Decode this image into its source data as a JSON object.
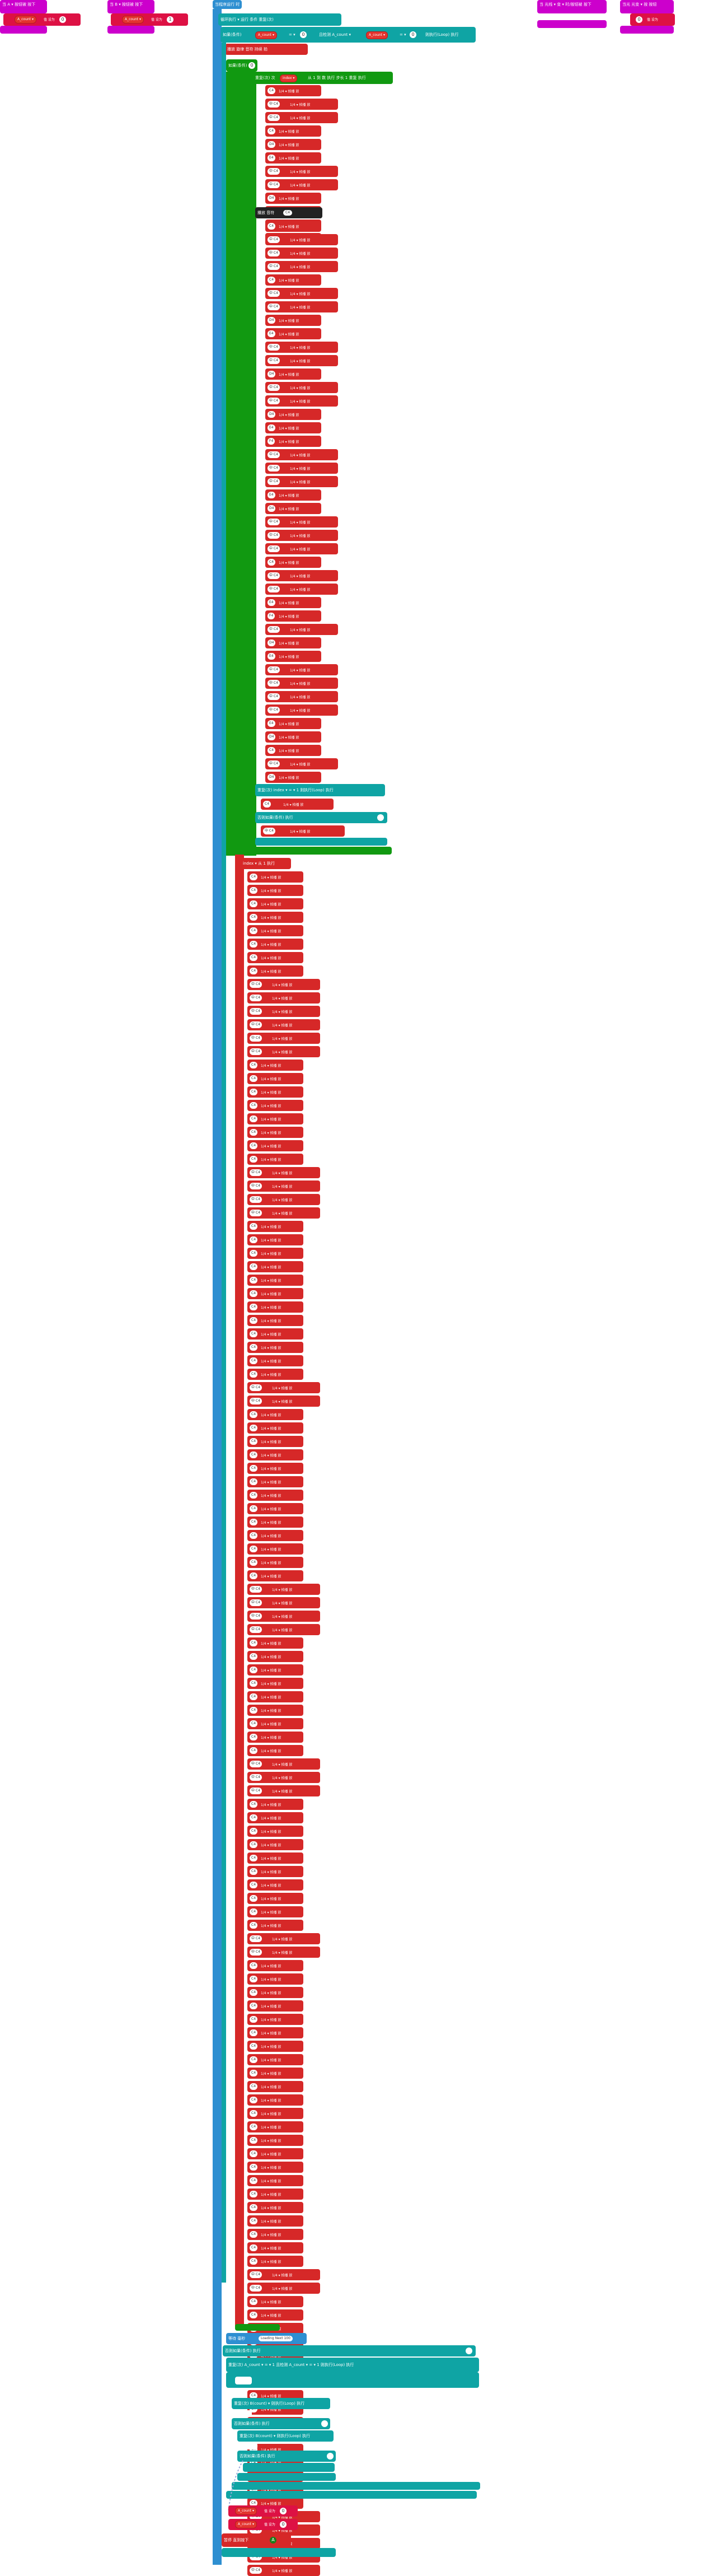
{
  "top_blocks": [
    {
      "label": "当 A ▾ 按钮被 按下",
      "var": "A_count ▾",
      "op": "值 设为",
      "num": "0"
    },
    {
      "label": "当 B ▾ 按钮被 按下",
      "var": "A_count ▾",
      "op": "值 设为",
      "num": "1"
    },
    {
      "label": "当 光线 ▾ 变 ▾ 时/按钮被 按下",
      "var": "",
      "op": "",
      "num": ""
    },
    {
      "label": "当光 光变 ▾ 按 按钮",
      "var": "",
      "op": "值 设为",
      "num": "0"
    }
  ],
  "main": {
    "hat": "当程序运行 时",
    "line1": "循环执行 ▾ 运行 条件 重复(次)",
    "line2_var": "A_count ▾",
    "line2_eq": "= ▾",
    "line2_num": "0",
    "line2_mid": "且检测 A_count ▾",
    "line2_rhs": "= ▾",
    "line2_tail": "则执行(Loop) 执行",
    "section_a": "播放 旋律 音符 持续 拍",
    "section_if": "如果(条件)",
    "section_if_do": "执行",
    "loop_head": "重复(次) 次",
    "loop_var": "index ▾",
    "loop_rest": "从 1 到 数 执行 步长 1 重复 执行",
    "banner": "播放 音符",
    "banner_pill": "C4",
    "note_text": "1/4 ▾ 拍播 放",
    "red_rows_note": "音 音符 播放",
    "notes_a": [
      "C4",
      "中 C4",
      "中 C4",
      "C4",
      "D4",
      "E4",
      "中 C4",
      "中 C4",
      "D4",
      "D4",
      "E4",
      "F4"
    ],
    "notes_b": [
      "C4",
      "中 C4",
      "中 C4",
      "中 C4",
      "C4",
      "中 C4",
      "中 C4",
      "D4",
      "E4",
      "中 C4",
      "中 C4",
      "D4",
      "中 C4",
      "中 C4",
      "D4",
      "E4",
      "F4",
      "中 C4",
      "中 C4",
      "中 C4",
      "E4",
      "D4",
      "中 C4",
      "中 C4",
      "中 C4",
      "C4",
      "中 C4",
      "中 C4",
      "E4",
      "F4",
      "中 C4",
      "D4",
      "E4",
      "中 C4",
      "中 C4",
      "中 C4",
      "中 C4",
      "E4",
      "D4",
      "C4",
      "中 C4",
      "D4"
    ],
    "after_loop_line": "重复(次) index ▾ = ▾ 1 则执行(Loop) 执行",
    "after_loop_row": "C4",
    "else_if": "否则如果(条件) 执行",
    "else_row": "中 C4",
    "second_loop_head": "index ▾ 从 1 执行",
    "notes_c": [
      "C4",
      "C4",
      "C4",
      "C4",
      "C4",
      "C4",
      "C4",
      "C4",
      "中 C4",
      "中 C4",
      "中 C4",
      "中 C4",
      "中 C4",
      "中 C4",
      "C4",
      "C4",
      "C4",
      "C4",
      "C4",
      "C4",
      "C4",
      "C4",
      "中 C4",
      "中 C4",
      "中 C4",
      "中 C4",
      "C4",
      "C4",
      "C4",
      "C4",
      "C4",
      "C4",
      "C4",
      "C4",
      "C4",
      "C4",
      "C4",
      "C4",
      "中 C4",
      "中 C4",
      "C4",
      "C4",
      "C4",
      "C4",
      "C4",
      "C4",
      "C4",
      "C4",
      "C4",
      "C4",
      "C4",
      "C4",
      "C4",
      "中 C4",
      "中 C4",
      "中 C4",
      "中 C4",
      "C4",
      "C4",
      "C4",
      "C4",
      "C4",
      "C4",
      "C4",
      "C4",
      "C4",
      "中 C4",
      "中 C4",
      "中 C4",
      "C4",
      "C4",
      "C4",
      "C4",
      "C4",
      "C4",
      "C4",
      "C4",
      "C4",
      "C4",
      "中 C4",
      "中 C4",
      "C4",
      "C4",
      "C4",
      "C4",
      "C4",
      "C4",
      "C4",
      "C4",
      "C4",
      "C4",
      "C4",
      "C4",
      "C4",
      "C4",
      "C4",
      "C4",
      "C4",
      "C4",
      "C4",
      "C4",
      "C4",
      "C4",
      "C4",
      "中 C4",
      "中 C4",
      "C4",
      "C4",
      "C4",
      "C4",
      "C4",
      "C4",
      "C4",
      "C4",
      "C4",
      "C4",
      "C4",
      "C4",
      "C4",
      "C4",
      "C4",
      "C4",
      "中 C4",
      "中 C4",
      "中 C4",
      "中 C4",
      "中 C4"
    ],
    "bottom_label1": "等待 毫秒",
    "bottom_pill1": "Loading Next 100",
    "bottom_else_if": "否则如果(条件) 执行",
    "bottom_line": "重复(次) A_count ▾ = ▾ 1 且检测 A_count ▾ = ▾ 1 则执行(Loop) 执行",
    "bottom_line2": "重复(次) B(count) ▾ 则执行(Loop) 执行",
    "bottom_else": "否则如果(条件) 执行",
    "bottom_line3": "重复(次) B(count) ▾ 则执行(Loop) 执行",
    "bottom_else2": "否则如果(条件) 执行",
    "final_var1": "A_count ▾",
    "final_var2": "A_count ▾",
    "final_op": "值 设为",
    "final_num": "0",
    "final_text": "暂停 直到按下",
    "final_btn": "A"
  },
  "colors": {
    "magenta": "#cc00cc",
    "teal": "#0fa4a4",
    "blue": "#2e8fd1",
    "green": "#119911",
    "red": "#d62828",
    "crimson": "#dd1144"
  }
}
